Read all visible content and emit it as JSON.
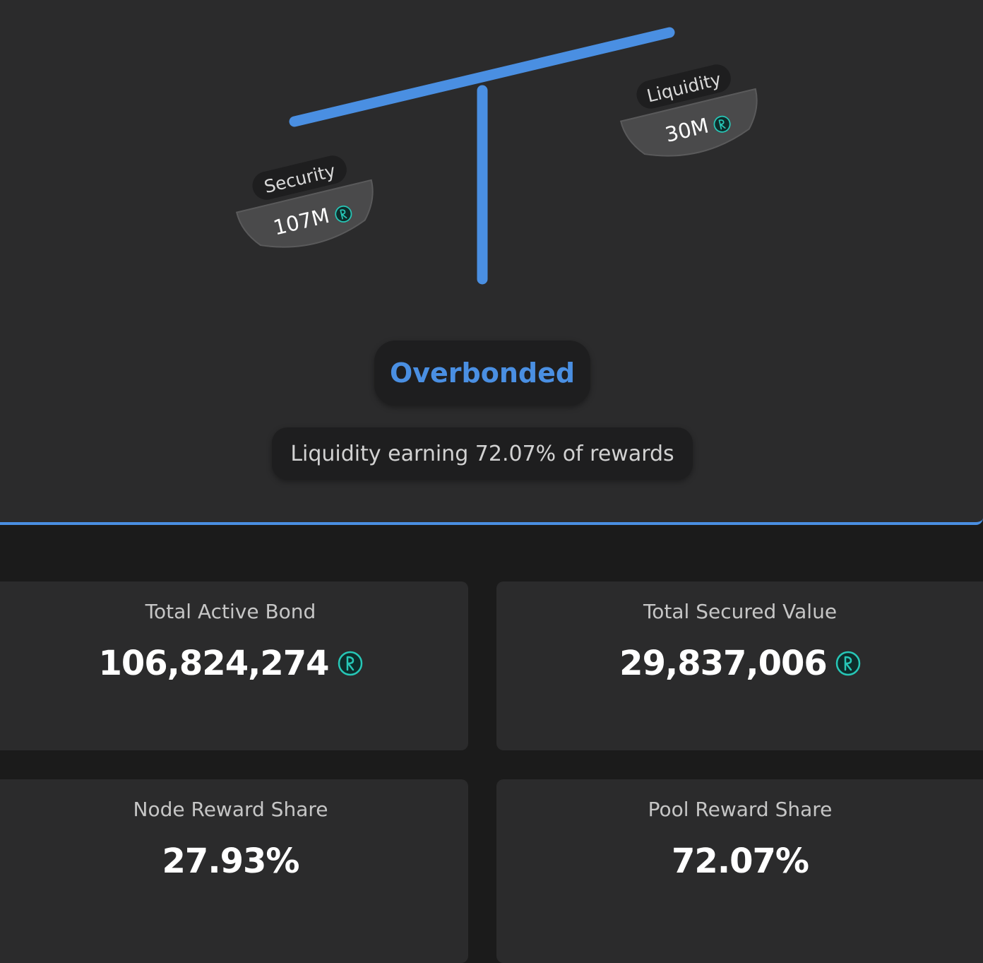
{
  "balance": {
    "security": {
      "label": "Security",
      "value": "107M",
      "icon": "rune-icon"
    },
    "liquidity": {
      "label": "Liquidity",
      "value": "30M",
      "icon": "rune-icon"
    }
  },
  "status": {
    "label": "Overbonded",
    "color": "#4a8fe2"
  },
  "rewards_message": "Liquidity earning 72.07% of rewards",
  "stats": {
    "total_active_bond": {
      "title": "Total Active Bond",
      "value": "106,824,274",
      "icon": "rune-icon"
    },
    "total_secured_value": {
      "title": "Total Secured Value",
      "value": "29,837,006",
      "icon": "rune-icon"
    },
    "node_reward_share": {
      "title": "Node Reward Share",
      "value": "27.93%"
    },
    "pool_reward_share": {
      "title": "Pool Reward Share",
      "value": "72.07%"
    }
  },
  "colors": {
    "accent": "#4a8fe2",
    "rune": "#27c7b7",
    "panel": "#2b2b2c",
    "background": "#1b1b1b"
  }
}
